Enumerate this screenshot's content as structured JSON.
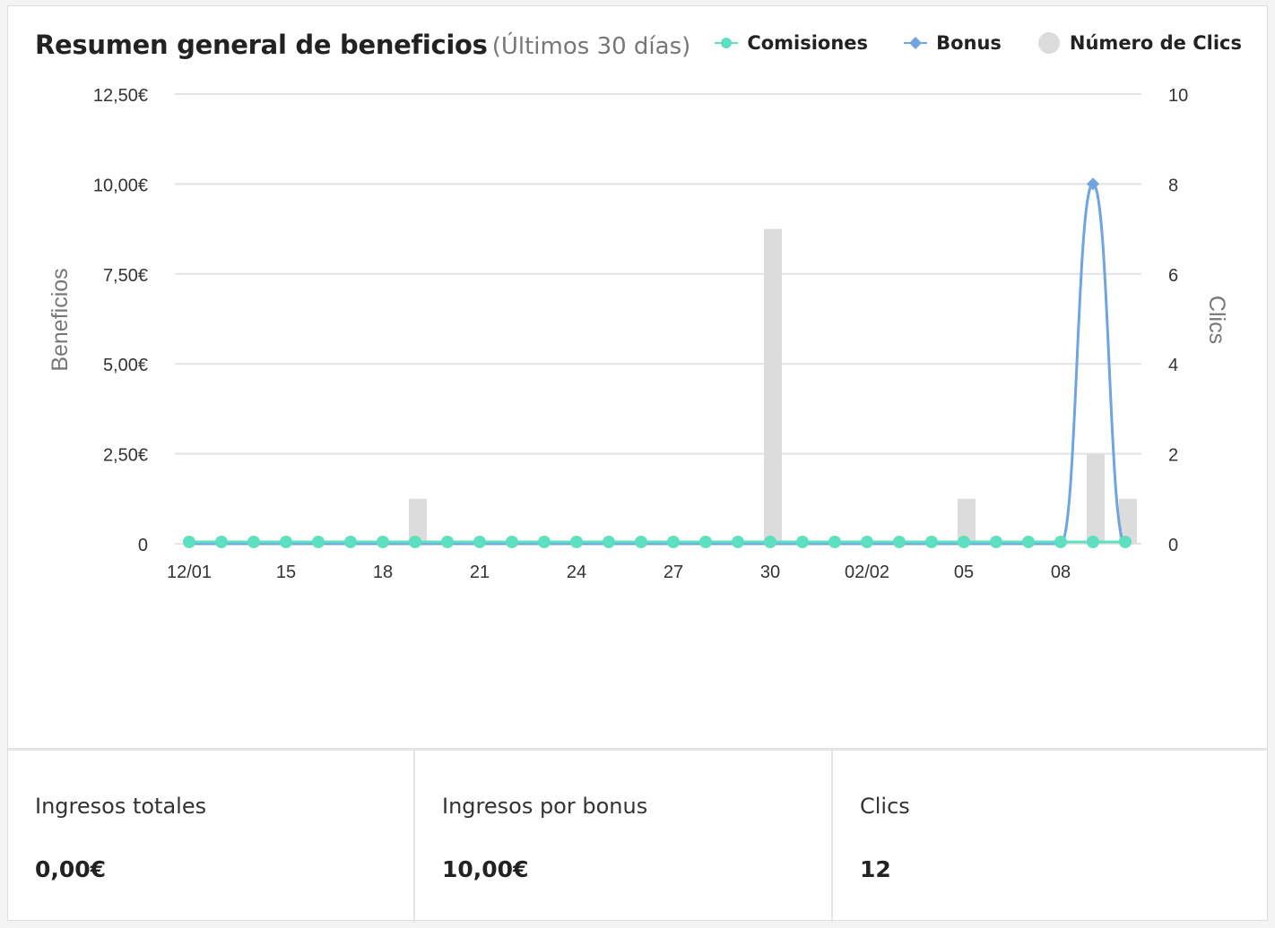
{
  "header": {
    "title": "Resumen general de beneficios",
    "subtitle": "(Últimos 30 días)"
  },
  "legend": [
    {
      "name": "Comisiones",
      "color": "#5ee0c0",
      "marker": "circle"
    },
    {
      "name": "Bonus",
      "color": "#6ea4e0",
      "marker": "diamond"
    },
    {
      "name": "Número de Clics",
      "color": "#dcdcdc",
      "marker": "dot"
    }
  ],
  "chart_data": {
    "type": "line",
    "xlabel": "",
    "ylabel_left": "Beneficios",
    "ylabel_right": "Clics",
    "left_ticks": [
      "0",
      "2,50€",
      "5,00€",
      "7,50€",
      "10,00€",
      "12,50€"
    ],
    "right_ticks": [
      "0",
      "2",
      "4",
      "6",
      "8",
      "10"
    ],
    "x_tick_labels": [
      "12/01",
      "15",
      "18",
      "21",
      "24",
      "27",
      "30",
      "02/02",
      "05",
      "08"
    ],
    "x_tick_indices": [
      0,
      3,
      6,
      9,
      12,
      15,
      18,
      21,
      24,
      27
    ],
    "ylim_left": [
      0,
      12.5
    ],
    "ylim_right": [
      0,
      10
    ],
    "x": [
      "12/01",
      "13/01",
      "14/01",
      "15/01",
      "16/01",
      "17/01",
      "18/01",
      "19/01",
      "20/01",
      "21/01",
      "22/01",
      "23/01",
      "24/01",
      "25/01",
      "26/01",
      "27/01",
      "28/01",
      "29/01",
      "30/01",
      "31/01",
      "01/02",
      "02/02",
      "03/02",
      "04/02",
      "05/02",
      "06/02",
      "07/02",
      "08/02",
      "09/02",
      "10/02"
    ],
    "series": [
      {
        "name": "Comisiones",
        "axis": "left",
        "kind": "line",
        "values": [
          0,
          0,
          0,
          0,
          0,
          0,
          0,
          0,
          0,
          0,
          0,
          0,
          0,
          0,
          0,
          0,
          0,
          0,
          0,
          0,
          0,
          0,
          0,
          0,
          0,
          0,
          0,
          0,
          0,
          0
        ]
      },
      {
        "name": "Bonus",
        "axis": "left",
        "kind": "line",
        "values": [
          0,
          0,
          0,
          0,
          0,
          0,
          0,
          0,
          0,
          0,
          0,
          0,
          0,
          0,
          0,
          0,
          0,
          0,
          0,
          0,
          0,
          0,
          0,
          0,
          0,
          0,
          0,
          0,
          10,
          0
        ]
      },
      {
        "name": "Número de Clics",
        "axis": "right",
        "kind": "bar",
        "values": [
          0,
          0,
          0,
          0,
          0,
          0,
          0,
          1,
          0,
          0,
          0,
          0,
          0,
          0,
          0,
          0,
          0,
          0,
          7,
          0,
          0,
          0,
          0,
          0,
          1,
          0,
          0,
          0,
          2,
          1
        ]
      }
    ],
    "grid": true,
    "legend_position": "top-right"
  },
  "stats": [
    {
      "label": "Ingresos totales",
      "value": "0,00€"
    },
    {
      "label": "Ingresos por bonus",
      "value": "10,00€"
    },
    {
      "label": "Clics",
      "value": "12"
    }
  ]
}
